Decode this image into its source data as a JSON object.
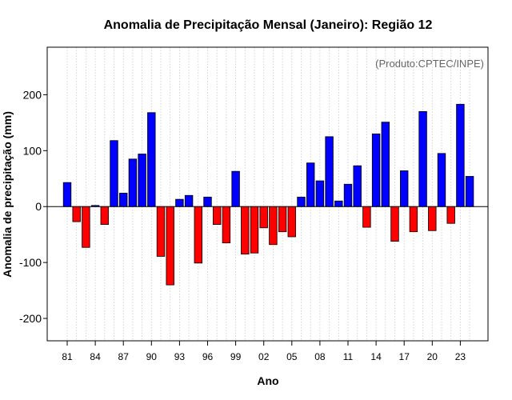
{
  "chart_data": {
    "type": "bar",
    "title": "Anomalia de Precipitação Mensal (Janeiro): Região 12",
    "xlabel": "Ano",
    "ylabel": "Anomalia de precipitação (mm)",
    "source_note": "(Produto:CPTEC/INPE)",
    "ylim": [
      -240,
      285
    ],
    "yticks": [
      -200,
      -100,
      0,
      100,
      200
    ],
    "grid": true,
    "colors": {
      "positive": "#0000ff",
      "negative": "#ff0000",
      "edge": "#000000"
    },
    "years": [
      1981,
      1982,
      1983,
      1984,
      1985,
      1986,
      1987,
      1988,
      1989,
      1990,
      1991,
      1992,
      1993,
      1994,
      1995,
      1996,
      1997,
      1998,
      1999,
      2000,
      2001,
      2002,
      2003,
      2004,
      2005,
      2006,
      2007,
      2008,
      2009,
      2010,
      2011,
      2012,
      2013,
      2014,
      2015,
      2016,
      2017,
      2018,
      2019,
      2020,
      2021,
      2022,
      2023,
      2024
    ],
    "values": [
      43,
      -27,
      -73,
      2,
      -32,
      118,
      24,
      85,
      94,
      168,
      -89,
      -140,
      13,
      20,
      -101,
      17,
      -32,
      -65,
      63,
      -85,
      -83,
      -38,
      -68,
      -45,
      -54,
      17,
      78,
      46,
      125,
      10,
      40,
      73,
      -37,
      130,
      151,
      -62,
      64,
      -45,
      170,
      -43,
      95,
      -30,
      183,
      54
    ],
    "tick_labels": [
      "81",
      "84",
      "87",
      "90",
      "93",
      "96",
      "99",
      "02",
      "05",
      "08",
      "11",
      "14",
      "17",
      "20",
      "23"
    ]
  }
}
